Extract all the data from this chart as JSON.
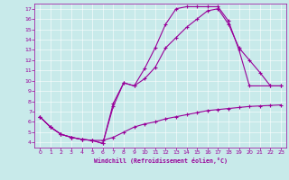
{
  "xlabel": "Windchill (Refroidissement éolien,°C)",
  "bg_color": "#c8eaea",
  "line_color": "#990099",
  "xlim": [
    -0.5,
    23.5
  ],
  "ylim": [
    3.5,
    17.5
  ],
  "yticks": [
    4,
    5,
    6,
    7,
    8,
    9,
    10,
    11,
    12,
    13,
    14,
    15,
    16,
    17
  ],
  "xticks": [
    0,
    1,
    2,
    3,
    4,
    5,
    6,
    7,
    8,
    9,
    10,
    11,
    12,
    13,
    14,
    15,
    16,
    17,
    18,
    19,
    20,
    21,
    22,
    23
  ],
  "curve1_x": [
    0,
    1,
    2,
    3,
    4,
    5,
    6,
    7,
    8,
    9,
    10,
    11,
    12,
    13,
    14,
    15,
    16,
    17,
    18,
    19,
    20,
    22,
    23
  ],
  "curve1_y": [
    6.5,
    5.5,
    4.8,
    4.5,
    4.3,
    4.2,
    3.9,
    7.8,
    9.8,
    9.5,
    11.2,
    13.2,
    15.5,
    17.0,
    17.2,
    17.2,
    17.2,
    17.2,
    15.8,
    13.0,
    9.5,
    9.5,
    9.5
  ],
  "curve2_x": [
    0,
    1,
    2,
    3,
    4,
    5,
    6,
    7,
    8,
    9,
    10,
    11,
    12,
    13,
    14,
    15,
    16,
    17,
    18,
    19,
    20,
    21,
    22,
    23
  ],
  "curve2_y": [
    6.5,
    5.5,
    4.8,
    4.5,
    4.3,
    4.2,
    3.9,
    7.5,
    9.8,
    9.5,
    10.2,
    11.3,
    13.2,
    14.2,
    15.2,
    16.0,
    16.8,
    17.0,
    15.5,
    13.2,
    12.0,
    10.8,
    9.5,
    9.5
  ],
  "curve3_x": [
    0,
    1,
    2,
    3,
    4,
    5,
    6,
    7,
    8,
    9,
    10,
    11,
    12,
    13,
    14,
    15,
    16,
    17,
    18,
    19,
    20,
    21,
    22,
    23
  ],
  "curve3_y": [
    6.5,
    5.5,
    4.8,
    4.5,
    4.3,
    4.2,
    4.2,
    4.5,
    5.0,
    5.5,
    5.8,
    6.0,
    6.3,
    6.5,
    6.7,
    6.9,
    7.1,
    7.2,
    7.3,
    7.4,
    7.5,
    7.55,
    7.6,
    7.65
  ]
}
